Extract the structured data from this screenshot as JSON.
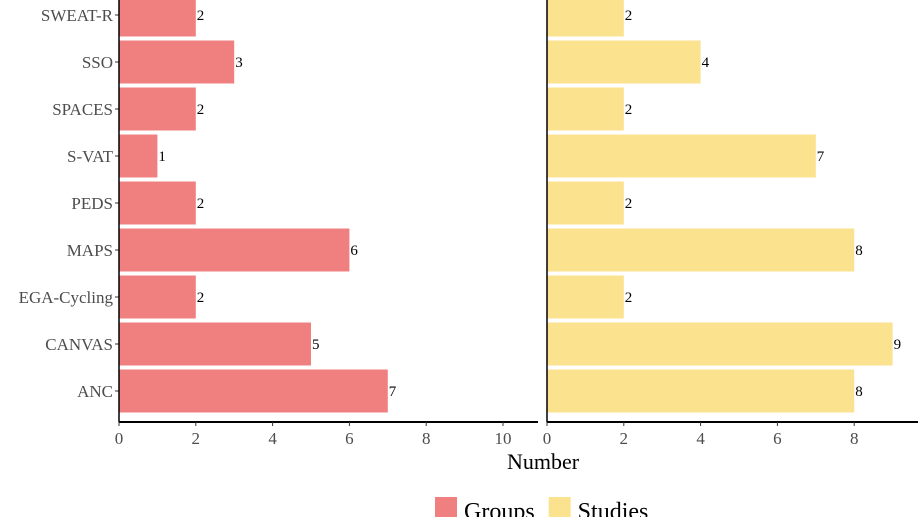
{
  "chart_data": {
    "type": "bar",
    "orientation": "horizontal",
    "categories": [
      "SWEAT-R",
      "SSO",
      "SPACES",
      "S-VAT",
      "PEDS",
      "MAPS",
      "EGA-Cycling",
      "CANVAS",
      "ANC"
    ],
    "series": [
      {
        "name": "Groups",
        "color": "#f08080",
        "values": [
          2,
          3,
          2,
          1,
          2,
          6,
          2,
          5,
          7
        ]
      },
      {
        "name": "Studies",
        "color": "#fbe28f",
        "values": [
          2,
          4,
          2,
          7,
          2,
          8,
          2,
          9,
          8
        ]
      }
    ],
    "panels": [
      {
        "series": "Groups",
        "xlim": [
          0,
          11
        ],
        "ticks": [
          "0",
          "2",
          "4",
          "6",
          "8",
          "10"
        ]
      },
      {
        "series": "Studies",
        "xlim": [
          0,
          9.5
        ],
        "ticks": [
          "0",
          "2",
          "4",
          "6",
          "8"
        ]
      }
    ],
    "xlabel": "Number",
    "legend": {
      "position": "bottom",
      "entries": [
        "Groups",
        "Studies"
      ]
    },
    "grid": false
  }
}
